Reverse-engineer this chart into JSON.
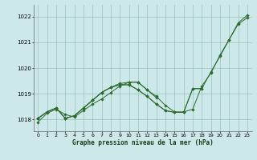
{
  "title": "Graphe pression niveau de la mer (hPa)",
  "xlabel_ticks": [
    0,
    1,
    2,
    3,
    4,
    5,
    6,
    7,
    8,
    9,
    10,
    11,
    12,
    13,
    14,
    15,
    16,
    17,
    18,
    19,
    20,
    21,
    22,
    23
  ],
  "yticks": [
    1018,
    1019,
    1020,
    1021,
    1022
  ],
  "ylim": [
    1017.55,
    1022.45
  ],
  "xlim": [
    -0.5,
    23.5
  ],
  "bg_color": "#cce8e8",
  "grid_color": "#9bbfbf",
  "line_color": "#2d6a2d",
  "series": [
    {
      "x": [
        0,
        1,
        2,
        3,
        4,
        5,
        6,
        7,
        8,
        9,
        10,
        11,
        12,
        13,
        14,
        15,
        16,
        17,
        18,
        19,
        20,
        21,
        22,
        23
      ],
      "y": [
        1017.9,
        1018.25,
        1018.4,
        1018.2,
        1018.1,
        1018.35,
        1018.6,
        1018.8,
        1019.05,
        1019.3,
        1019.45,
        1019.45,
        1019.15,
        1018.9,
        1018.55,
        1018.3,
        1018.3,
        1018.4,
        1019.3,
        1019.8,
        1020.5,
        1021.1,
        1021.75,
        1022.05
      ]
    },
    {
      "x": [
        0,
        1,
        2,
        3,
        4,
        5,
        6,
        7,
        8,
        9,
        10,
        11,
        12,
        13
      ],
      "y": [
        1018.05,
        1018.3,
        1018.45,
        1018.05,
        1018.15,
        1018.45,
        1018.75,
        1019.05,
        1019.25,
        1019.4,
        1019.45,
        1019.45,
        1019.15,
        1018.85
      ]
    },
    {
      "x": [
        0,
        1,
        2,
        3,
        4,
        5,
        6,
        7,
        8,
        9,
        10,
        11,
        12,
        13,
        14,
        15,
        16,
        17,
        18
      ],
      "y": [
        1018.05,
        1018.3,
        1018.45,
        1018.05,
        1018.15,
        1018.45,
        1018.75,
        1019.05,
        1019.25,
        1019.35,
        1019.35,
        1019.15,
        1018.9,
        1018.6,
        1018.35,
        1018.28,
        1018.28,
        1019.2,
        1019.2
      ]
    },
    {
      "x": [
        0,
        1,
        2,
        3,
        4,
        5,
        6,
        7,
        8,
        9,
        10,
        11,
        12,
        13,
        14,
        15,
        16,
        17,
        18,
        19,
        20,
        21,
        22,
        23
      ],
      "y": [
        1018.05,
        1018.3,
        1018.45,
        1018.05,
        1018.15,
        1018.45,
        1018.75,
        1019.05,
        1019.25,
        1019.35,
        1019.35,
        1019.15,
        1018.9,
        1018.6,
        1018.35,
        1018.28,
        1018.28,
        1019.2,
        1019.2,
        1019.85,
        1020.45,
        1021.1,
        1021.7,
        1021.95
      ]
    }
  ]
}
